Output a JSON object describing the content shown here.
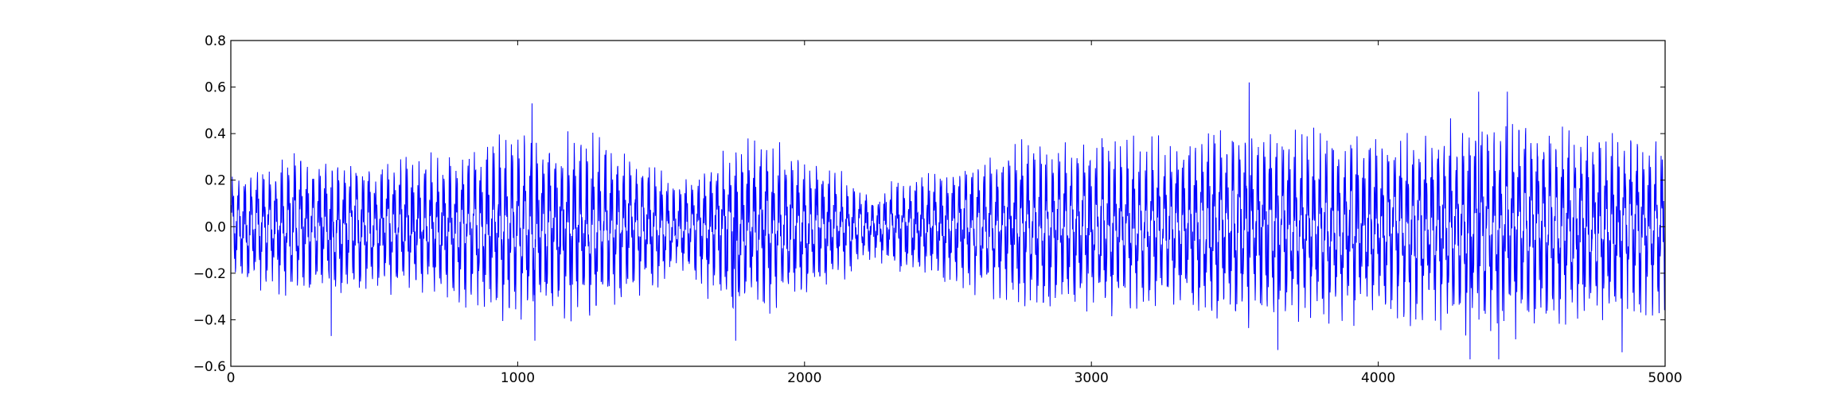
{
  "chart_data": {
    "type": "line",
    "title": "",
    "xlabel": "",
    "ylabel": "",
    "xlim": [
      0,
      5000
    ],
    "ylim": [
      -0.6,
      0.8
    ],
    "x_ticks": [
      0,
      1000,
      2000,
      3000,
      4000,
      5000
    ],
    "x_tick_labels": [
      "0",
      "1000",
      "2000",
      "3000",
      "4000",
      "5000"
    ],
    "y_ticks": [
      -0.6,
      -0.4,
      -0.2,
      0.0,
      0.2,
      0.4,
      0.6,
      0.8
    ],
    "y_tick_labels": [
      "−0.6",
      "−0.4",
      "−0.2",
      "0.0",
      "0.2",
      "0.4",
      "0.6",
      "0.8"
    ],
    "grid": false,
    "legend": "none",
    "series": [
      {
        "color": "#0000ff",
        "sample_spacing": 1,
        "envelope_x": [
          0,
          250,
          500,
          750,
          1000,
          1250,
          1500,
          1550,
          1750,
          2000,
          2250,
          2300,
          2500,
          2750,
          3000,
          3250,
          3500,
          3750,
          4000,
          4250,
          4500,
          4750,
          5000
        ],
        "envelope_amplitude": [
          0.25,
          0.35,
          0.3,
          0.35,
          0.45,
          0.42,
          0.3,
          0.18,
          0.42,
          0.35,
          0.15,
          0.2,
          0.3,
          0.38,
          0.42,
          0.4,
          0.45,
          0.45,
          0.45,
          0.48,
          0.5,
          0.42,
          0.42
        ],
        "peaks": [
          {
            "x": 350,
            "y": -0.47
          },
          {
            "x": 1050,
            "y": 0.53
          },
          {
            "x": 1060,
            "y": -0.49
          },
          {
            "x": 1760,
            "y": -0.49
          },
          {
            "x": 3550,
            "y": 0.62
          },
          {
            "x": 3650,
            "y": -0.53
          },
          {
            "x": 4320,
            "y": -0.57
          },
          {
            "x": 4350,
            "y": 0.58
          },
          {
            "x": 4420,
            "y": -0.57
          },
          {
            "x": 4450,
            "y": 0.58
          },
          {
            "x": 4850,
            "y": -0.54
          }
        ]
      }
    ]
  }
}
